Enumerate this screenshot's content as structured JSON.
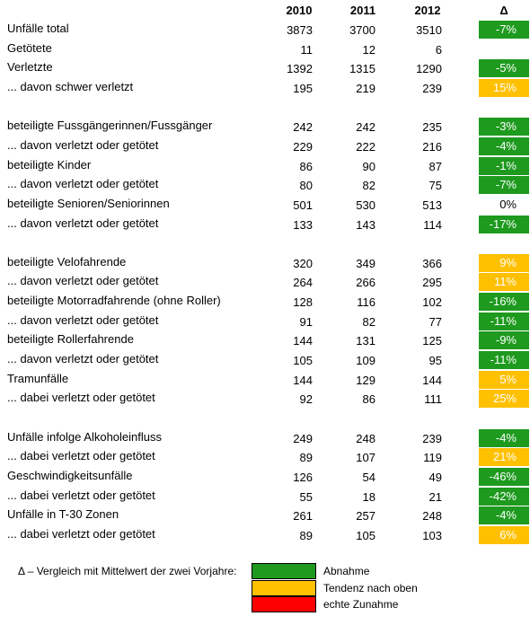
{
  "table": {
    "columns": [
      "2010",
      "2011",
      "2012",
      "Δ"
    ],
    "groups": [
      {
        "rows": [
          {
            "label": "Unfälle total",
            "values": [
              3873,
              3700,
              3510
            ],
            "delta": "-7%",
            "color": "#1e9a1e"
          },
          {
            "label": "Getötete",
            "values": [
              11,
              12,
              6
            ]
          },
          {
            "label": "Verletzte",
            "values": [
              1392,
              1315,
              1290
            ],
            "delta": "-5%",
            "color": "#1e9a1e"
          },
          {
            "label": "... davon schwer verletzt",
            "values": [
              195,
              219,
              239
            ],
            "delta": "15%",
            "color": "#ffc000"
          }
        ]
      },
      {
        "rows": [
          {
            "label": "beteiligte Fussgängerinnen/Fussgänger",
            "values": [
              242,
              242,
              235
            ],
            "delta": "-3%",
            "color": "#1e9a1e"
          },
          {
            "label": "... davon verletzt oder getötet",
            "values": [
              229,
              222,
              216
            ],
            "delta": "-4%",
            "color": "#1e9a1e"
          },
          {
            "label": "beteiligte Kinder",
            "values": [
              86,
              90,
              87
            ],
            "delta": "-1%",
            "color": "#1e9a1e"
          },
          {
            "label": "... davon verletzt oder getötet",
            "values": [
              80,
              82,
              75
            ],
            "delta": "-7%",
            "color": "#1e9a1e"
          },
          {
            "label": "beteiligte Senioren/Seniorinnen",
            "values": [
              501,
              530,
              513
            ],
            "delta": "0%"
          },
          {
            "label": "... davon verletzt oder getötet",
            "values": [
              133,
              143,
              114
            ],
            "delta": "-17%",
            "color": "#1e9a1e"
          }
        ]
      },
      {
        "rows": [
          {
            "label": "beteiligte Velofahrende",
            "values": [
              320,
              349,
              366
            ],
            "delta": "9%",
            "color": "#ffc000"
          },
          {
            "label": "... davon verletzt oder getötet",
            "values": [
              264,
              266,
              295
            ],
            "delta": "11%",
            "color": "#ffc000"
          },
          {
            "label": "beteiligte Motorradfahrende (ohne Roller)",
            "values": [
              128,
              116,
              102
            ],
            "delta": "-16%",
            "color": "#1e9a1e"
          },
          {
            "label": "... davon verletzt oder getötet",
            "values": [
              91,
              82,
              77
            ],
            "delta": "-11%",
            "color": "#1e9a1e"
          },
          {
            "label": "beteiligte Rollerfahrende",
            "values": [
              144,
              131,
              125
            ],
            "delta": "-9%",
            "color": "#1e9a1e"
          },
          {
            "label": "... davon verletzt oder getötet",
            "values": [
              105,
              109,
              95
            ],
            "delta": "-11%",
            "color": "#1e9a1e"
          },
          {
            "label": "Tramunfälle",
            "values": [
              144,
              129,
              144
            ],
            "delta": "5%",
            "color": "#ffc000"
          },
          {
            "label": "... dabei verletzt oder getötet",
            "values": [
              92,
              86,
              111
            ],
            "delta": "25%",
            "color": "#ffc000"
          }
        ]
      },
      {
        "rows": [
          {
            "label": "Unfälle infolge Alkoholeinfluss",
            "values": [
              249,
              248,
              239
            ],
            "delta": "-4%",
            "color": "#1e9a1e"
          },
          {
            "label": "... dabei verletzt oder getötet",
            "values": [
              89,
              107,
              119
            ],
            "delta": "21%",
            "color": "#ffc000"
          },
          {
            "label": "Geschwindigkeitsunfälle",
            "values": [
              126,
              54,
              49
            ],
            "delta": "-46%",
            "color": "#1e9a1e"
          },
          {
            "label": "... dabei verletzt oder getötet",
            "values": [
              55,
              18,
              21
            ],
            "delta": "-42%",
            "color": "#1e9a1e"
          },
          {
            "label": "Unfälle in T-30 Zonen",
            "values": [
              261,
              257,
              248
            ],
            "delta": "-4%",
            "color": "#1e9a1e"
          },
          {
            "label": "... dabei verletzt oder getötet",
            "values": [
              89,
              105,
              103
            ],
            "delta": "6%",
            "color": "#ffc000"
          }
        ]
      }
    ]
  },
  "legend": {
    "title": "Δ – Vergleich mit Mittelwert der zwei Vorjahre:",
    "items": [
      {
        "label": "Abnahme",
        "color": "#1e9a1e"
      },
      {
        "label": "Tendenz nach oben",
        "color": "#ffc000"
      },
      {
        "label": "echte Zunahme",
        "color": "#ff0000"
      }
    ]
  }
}
